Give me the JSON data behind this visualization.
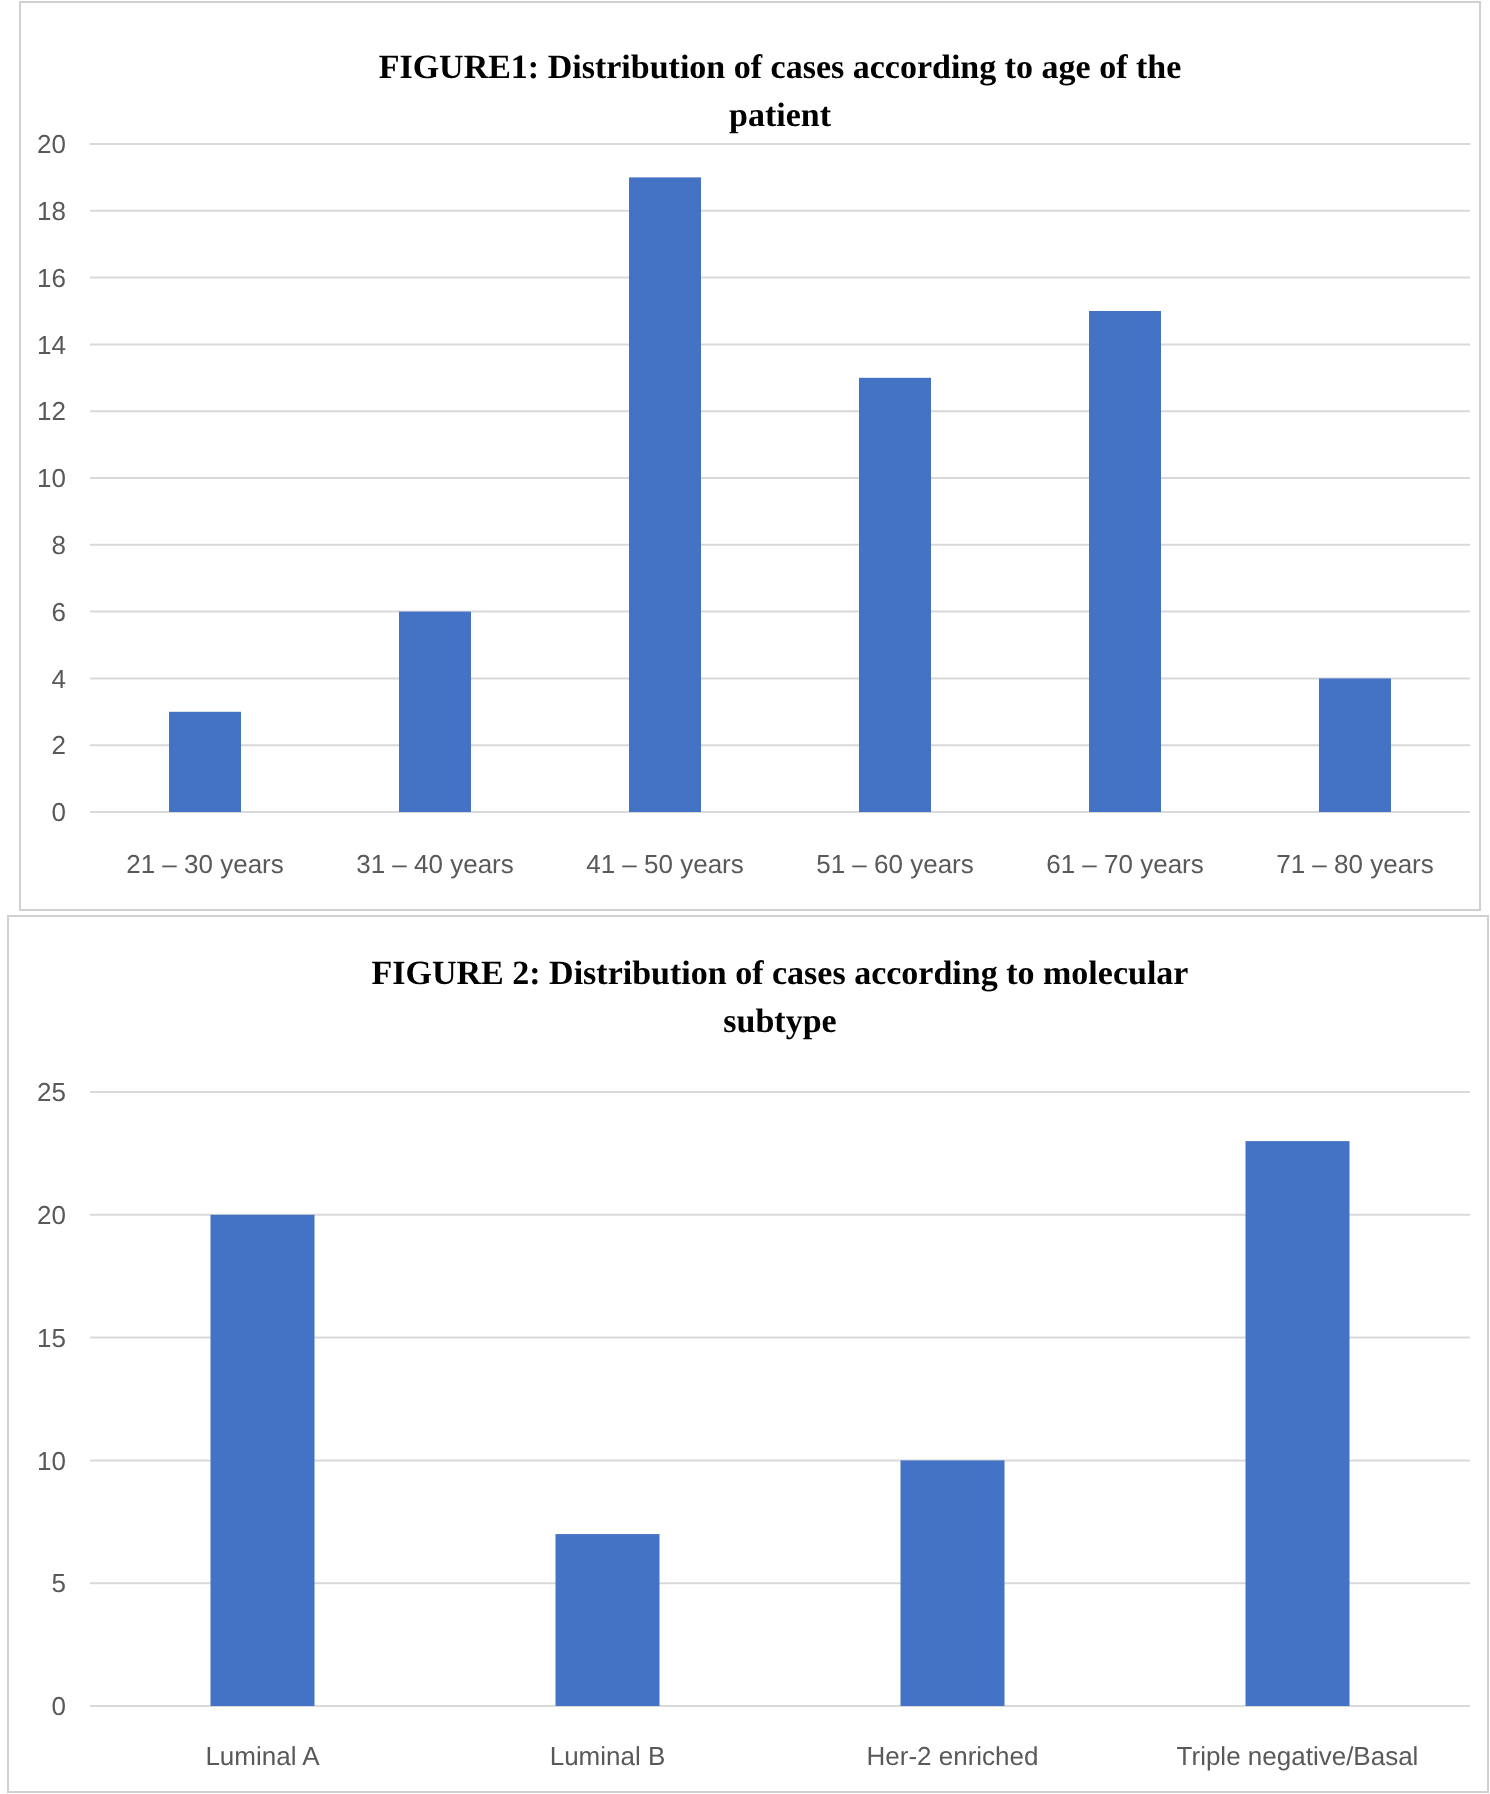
{
  "chart_data": [
    {
      "type": "bar",
      "title": "FIGURE1: Distribution of cases according to age of the patient",
      "categories": [
        "21 – 30 years",
        "31 – 40 years",
        "41 – 50 years",
        "51 – 60 years",
        "61 – 70 years",
        "71 – 80 years"
      ],
      "values": [
        3,
        6,
        19,
        13,
        15,
        4
      ],
      "color": "#4472c4",
      "ylim": [
        0,
        20
      ],
      "yticks": [
        0,
        2,
        4,
        6,
        8,
        10,
        12,
        14,
        16,
        18,
        20
      ],
      "grid": "y"
    },
    {
      "type": "bar",
      "title": "FIGURE 2: Distribution of cases according to molecular subtype",
      "categories": [
        "Luminal A",
        "Luminal B",
        "Her-2 enriched",
        "Triple negative/Basal"
      ],
      "values": [
        20,
        7,
        10,
        23
      ],
      "color": "#4472c4",
      "ylim": [
        0,
        25
      ],
      "yticks": [
        0,
        5,
        10,
        15,
        20,
        25
      ],
      "grid": "y"
    }
  ]
}
